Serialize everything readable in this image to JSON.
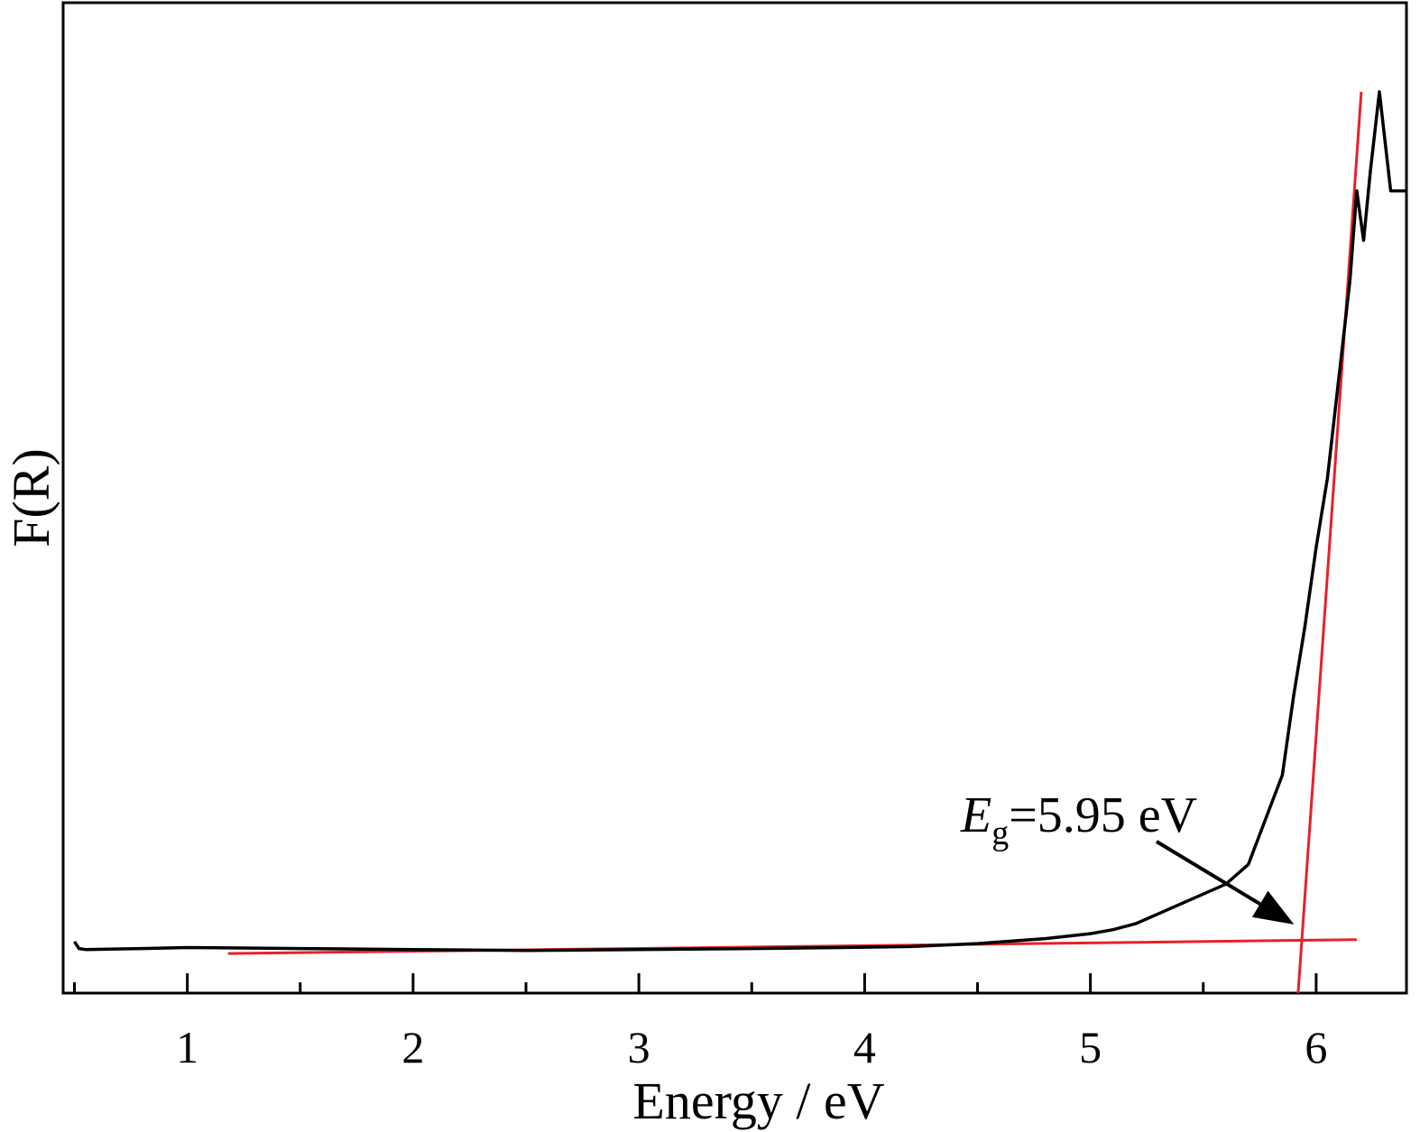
{
  "chart_data": {
    "type": "line",
    "title": "",
    "xlabel": "Energy / eV",
    "ylabel": "F(R)",
    "xlim": [
      0.45,
      6.4
    ],
    "ylim": [
      0,
      1.0
    ],
    "x_ticks": [
      1,
      2,
      3,
      4,
      5,
      6
    ],
    "x_tick_labels": [
      "1",
      "2",
      "3",
      "4",
      "5",
      "6"
    ],
    "y_ticks_labeled": false,
    "grid": false,
    "legend": "none",
    "colors": {
      "spectrum": "#000000",
      "fit": "#e8202a"
    },
    "series": [
      {
        "role": "spectrum",
        "x": [
          0.5,
          0.52,
          0.55,
          0.8,
          1.0,
          1.5,
          2.0,
          2.5,
          3.0,
          3.5,
          3.9,
          4.2,
          4.5,
          4.8,
          5.0,
          5.1,
          5.2,
          5.3,
          5.4,
          5.5,
          5.6,
          5.7,
          5.75,
          5.8,
          5.85,
          5.9,
          5.95,
          6.0,
          6.05,
          6.1,
          6.15,
          6.18,
          6.21,
          6.24,
          6.28,
          6.33,
          6.4
        ],
        "y": [
          0.052,
          0.045,
          0.044,
          0.045,
          0.046,
          0.045,
          0.044,
          0.043,
          0.044,
          0.045,
          0.046,
          0.047,
          0.05,
          0.055,
          0.06,
          0.064,
          0.07,
          0.08,
          0.09,
          0.1,
          0.11,
          0.13,
          0.16,
          0.19,
          0.22,
          0.3,
          0.37,
          0.45,
          0.52,
          0.62,
          0.72,
          0.81,
          0.76,
          0.83,
          0.91,
          0.81,
          0.81
        ]
      },
      {
        "role": "fit",
        "x": [
          1.18,
          6.18
        ],
        "y": [
          0.04,
          0.054
        ]
      },
      {
        "role": "fit",
        "x": [
          5.92,
          6.2
        ],
        "y": [
          0.0,
          0.91
        ]
      }
    ],
    "annotation": {
      "symbol": "E",
      "subscript": "g",
      "text": "=5.95 eV",
      "points_to": [
        5.95,
        0.062
      ]
    }
  }
}
